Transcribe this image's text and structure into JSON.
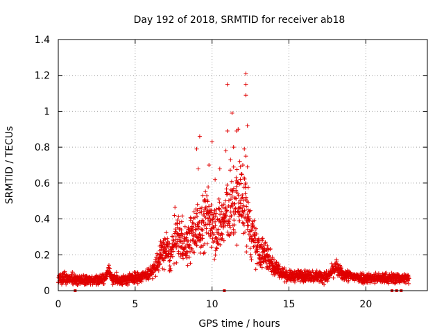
{
  "chart_data": {
    "type": "scatter",
    "title": "Day 192 of 2018, SRMTID for receiver ab18",
    "xlabel": "GPS time / hours",
    "ylabel": "SRMTID / TECUs",
    "xlim": [
      0,
      24
    ],
    "ylim": [
      0,
      1.4
    ],
    "xticks": [
      0,
      5,
      10,
      15,
      20
    ],
    "xtick_labels": [
      "0",
      "5",
      "10",
      "15",
      "20"
    ],
    "yticks": [
      0,
      0.2,
      0.4,
      0.6,
      0.8,
      1,
      1.2,
      1.4
    ],
    "ytick_labels": [
      "0",
      "0.2",
      "0.4",
      "0.6",
      "0.8",
      "1",
      "1.2",
      "1.4"
    ],
    "grid": true,
    "marker": "+",
    "color": "#e00000",
    "series": [
      {
        "name": "SRMTID",
        "profile": [
          [
            0.0,
            0.065
          ],
          [
            0.5,
            0.07
          ],
          [
            1.0,
            0.065
          ],
          [
            1.5,
            0.062
          ],
          [
            2.0,
            0.058
          ],
          [
            2.5,
            0.058
          ],
          [
            3.0,
            0.065
          ],
          [
            3.3,
            0.11
          ],
          [
            3.5,
            0.065
          ],
          [
            4.0,
            0.06
          ],
          [
            4.5,
            0.065
          ],
          [
            5.0,
            0.07
          ],
          [
            5.5,
            0.08
          ],
          [
            6.0,
            0.1
          ],
          [
            6.3,
            0.13
          ],
          [
            6.7,
            0.2
          ],
          [
            7.0,
            0.24
          ],
          [
            7.3,
            0.18
          ],
          [
            7.6,
            0.3
          ],
          [
            8.0,
            0.29
          ],
          [
            8.3,
            0.25
          ],
          [
            8.7,
            0.3
          ],
          [
            9.0,
            0.35
          ],
          [
            9.3,
            0.35
          ],
          [
            9.6,
            0.4
          ],
          [
            10.0,
            0.4
          ],
          [
            10.3,
            0.35
          ],
          [
            10.7,
            0.38
          ],
          [
            11.0,
            0.45
          ],
          [
            11.3,
            0.45
          ],
          [
            11.6,
            0.5
          ],
          [
            12.0,
            0.5
          ],
          [
            12.3,
            0.42
          ],
          [
            12.6,
            0.3
          ],
          [
            13.0,
            0.22
          ],
          [
            13.5,
            0.2
          ],
          [
            14.0,
            0.14
          ],
          [
            14.5,
            0.1
          ],
          [
            15.0,
            0.08
          ],
          [
            16.0,
            0.085
          ],
          [
            17.0,
            0.08
          ],
          [
            17.5,
            0.075
          ],
          [
            18.0,
            0.13
          ],
          [
            18.5,
            0.09
          ],
          [
            19.0,
            0.08
          ],
          [
            20.0,
            0.07
          ],
          [
            21.0,
            0.07
          ],
          [
            21.5,
            0.068
          ],
          [
            22.0,
            0.07
          ],
          [
            22.5,
            0.068
          ],
          [
            22.8,
            0.068
          ]
        ],
        "x_range": [
          0.0,
          22.8
        ],
        "point_count": 2200,
        "outliers": [
          [
            11.0,
            1.15
          ],
          [
            12.2,
            1.21
          ],
          [
            12.2,
            1.15
          ],
          [
            12.2,
            1.09
          ],
          [
            11.3,
            0.99
          ],
          [
            12.3,
            0.92
          ],
          [
            11.0,
            0.89
          ],
          [
            11.6,
            0.89
          ],
          [
            11.7,
            0.9
          ],
          [
            9.2,
            0.86
          ],
          [
            10.0,
            0.83
          ],
          [
            9.0,
            0.79
          ],
          [
            11.4,
            0.8
          ],
          [
            12.1,
            0.79
          ],
          [
            12.2,
            0.75
          ],
          [
            10.9,
            0.78
          ],
          [
            11.8,
            0.72
          ],
          [
            12.3,
            0.69
          ],
          [
            11.2,
            0.73
          ],
          [
            9.8,
            0.7
          ],
          [
            10.5,
            0.68
          ],
          [
            12.0,
            0.7
          ],
          [
            9.1,
            0.68
          ],
          [
            11.9,
            0.65
          ],
          [
            10.2,
            0.62
          ]
        ],
        "zero_points": [
          1.1,
          10.8,
          21.7,
          22.0,
          22.3
        ]
      }
    ]
  }
}
